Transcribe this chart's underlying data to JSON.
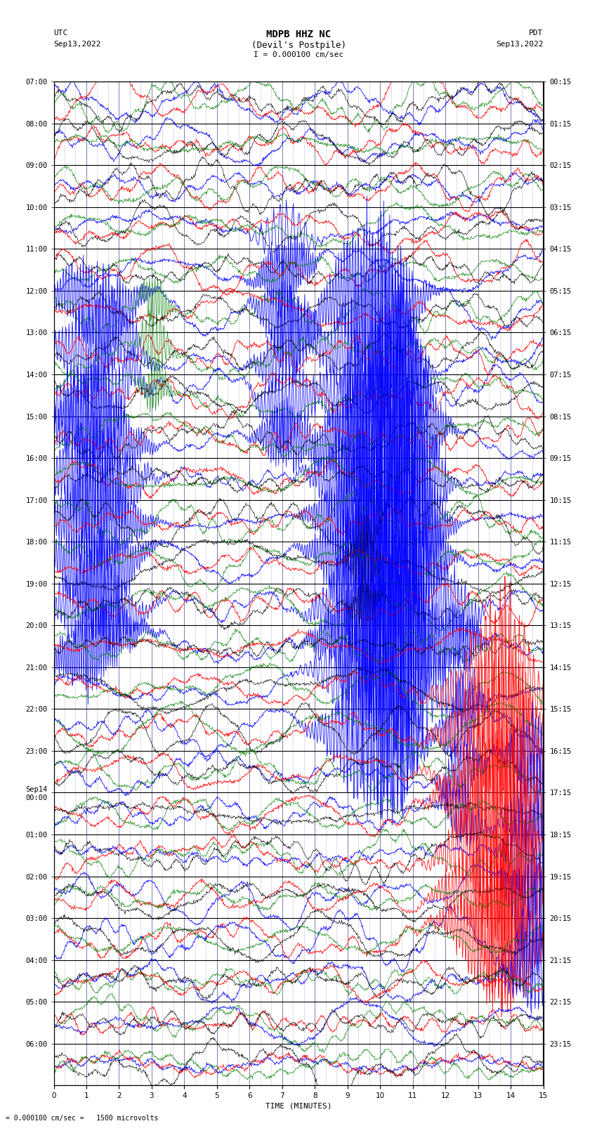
{
  "title_line1": "MDPB HHZ NC",
  "title_line2": "(Devil's Postpile)",
  "scale_text": "I = 0.000100 cm/sec",
  "bottom_text": "= 0.000100 cm/sec =   1500 microvolts",
  "utc_label": "UTC",
  "utc_date": "Sep13,2022",
  "pdt_label": "PDT",
  "pdt_date": "Sep13,2022",
  "xlabel": "TIME (MINUTES)",
  "left_times": [
    "07:00",
    "08:00",
    "09:00",
    "10:00",
    "11:00",
    "12:00",
    "13:00",
    "14:00",
    "15:00",
    "16:00",
    "17:00",
    "18:00",
    "19:00",
    "20:00",
    "21:00",
    "22:00",
    "23:00",
    "Sep14\n00:00",
    "01:00",
    "02:00",
    "03:00",
    "04:00",
    "05:00",
    "06:00"
  ],
  "right_times": [
    "00:15",
    "01:15",
    "02:15",
    "03:15",
    "04:15",
    "05:15",
    "06:15",
    "07:15",
    "08:15",
    "09:15",
    "10:15",
    "11:15",
    "12:15",
    "13:15",
    "14:15",
    "15:15",
    "16:15",
    "17:15",
    "18:15",
    "19:15",
    "20:15",
    "21:15",
    "22:15",
    "23:15"
  ],
  "n_rows": 24,
  "n_minutes": 15,
  "bg_color": "#ffffff",
  "grid_color_h": "#000000",
  "grid_color_v": "#aaaacc",
  "colors": [
    "blue",
    "red",
    "green",
    "black"
  ],
  "title_fontsize": 10,
  "label_fontsize": 8,
  "tick_fontsize": 7.5
}
